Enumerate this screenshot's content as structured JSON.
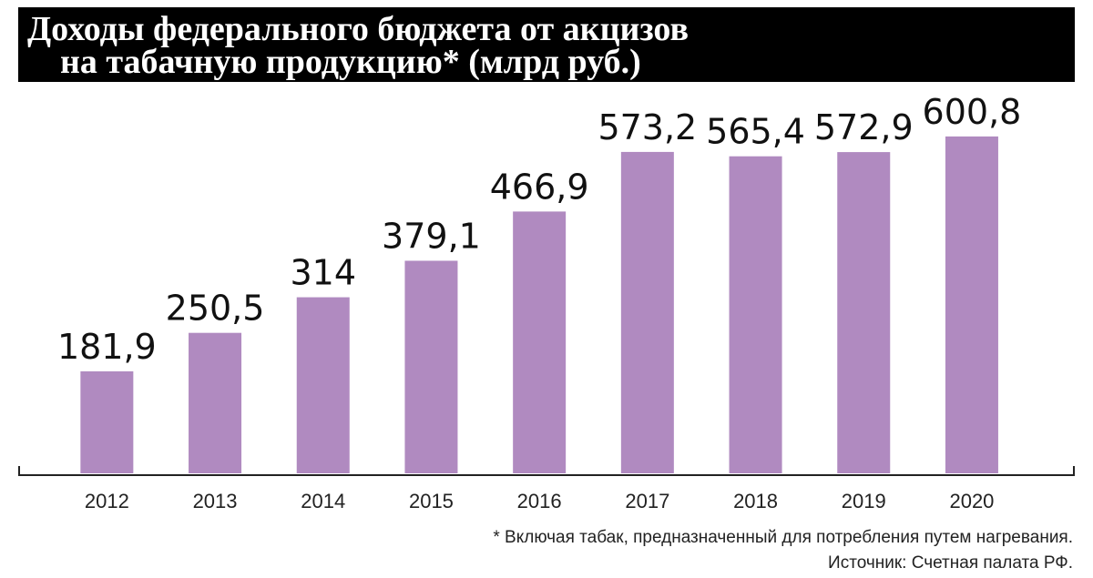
{
  "chart_data": {
    "type": "bar",
    "title": [
      "Доходы федерального бюджета от акцизов",
      "на табачную продукцию* (млрд руб.)"
    ],
    "categories": [
      "2012",
      "2013",
      "2014",
      "2015",
      "2016",
      "2017",
      "2018",
      "2019",
      "2020"
    ],
    "values": [
      181.9,
      250.5,
      314,
      379.1,
      466.9,
      573.2,
      565.4,
      572.9,
      600.8
    ],
    "value_labels": [
      "181,9",
      "250,5",
      "314",
      "379,1",
      "466,9",
      "573,2",
      "565,4",
      "572,9",
      "600,8"
    ],
    "color": "#b08ac0",
    "notes": [
      "* Включая табак, предназначенный для потребления путем нагревания.",
      "Источник: Счетная палата РФ."
    ]
  }
}
